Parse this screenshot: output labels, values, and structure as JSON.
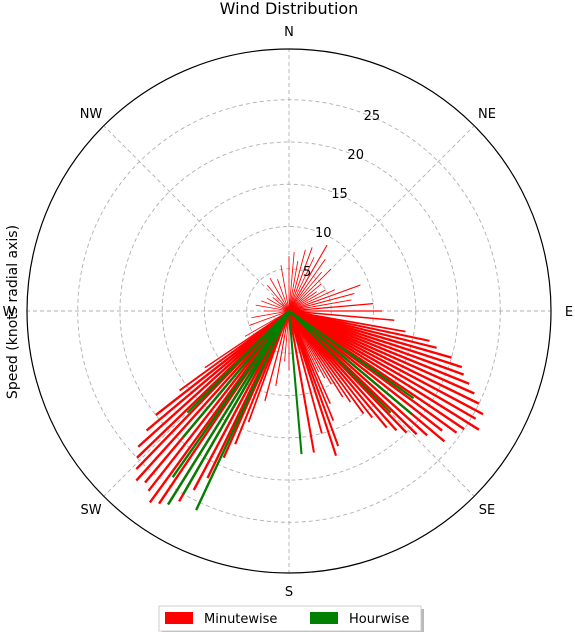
{
  "chart_data": {
    "type": "polar-bar",
    "title": "Wind Distribution",
    "ylabel": "Speed (knots radial axis)",
    "theta_direction": "clockwise",
    "theta_zero": "N",
    "direction_labels": [
      "N",
      "NE",
      "E",
      "SE",
      "S",
      "SW",
      "W",
      "NW"
    ],
    "rticks": [
      5,
      10,
      15,
      20,
      25
    ],
    "rlim": [
      0,
      31
    ],
    "grid": true,
    "legend_placement": "bottom-center",
    "series": [
      {
        "name": "Minutewise",
        "color": "#ff0000",
        "direction_deg": [
          0,
          5,
          10,
          15,
          20,
          25,
          30,
          35,
          40,
          45,
          50,
          55,
          60,
          65,
          70,
          75,
          80,
          85,
          90,
          95,
          100,
          102,
          104,
          106,
          108,
          110,
          112,
          114,
          116,
          118,
          120,
          122,
          124,
          126,
          128,
          130,
          132,
          134,
          136,
          138,
          140,
          142,
          144,
          146,
          148,
          150,
          152,
          154,
          156,
          158,
          160,
          162,
          165,
          170,
          175,
          180,
          185,
          190,
          195,
          200,
          202,
          204,
          206,
          208,
          210,
          212,
          214,
          216,
          218,
          220,
          222,
          224,
          226,
          228,
          230,
          232,
          234,
          236,
          240,
          250,
          260,
          270,
          280,
          290,
          300,
          310,
          320,
          330,
          340,
          350
        ],
        "speed": [
          6.5,
          7,
          6,
          7.5,
          8,
          7,
          9,
          7.5,
          6,
          7,
          5,
          4,
          5,
          6,
          9,
          8,
          7.5,
          10,
          11,
          12.5,
          14,
          17,
          18,
          20,
          21.5,
          22,
          23,
          24,
          25,
          26,
          25.5,
          26.5,
          25,
          24.5,
          23,
          24,
          22,
          21,
          20,
          19,
          18,
          16,
          15,
          13,
          12,
          10,
          9,
          8,
          12,
          14,
          17,
          18,
          15,
          17,
          9,
          7,
          6,
          9,
          11,
          14,
          17,
          19,
          22,
          24,
          26,
          27,
          27.5,
          28,
          27,
          26.5,
          27,
          26,
          25,
          24,
          22,
          20,
          16,
          12,
          6,
          5,
          4.5,
          3,
          4,
          3.5,
          3,
          2.5,
          4,
          4.5,
          4,
          5.5
        ]
      },
      {
        "name": "Hourwise",
        "color": "#008000",
        "direction_deg": [
          125,
          130,
          135,
          175,
          205,
          210,
          212,
          215,
          220,
          225
        ],
        "speed": [
          18,
          19,
          17,
          17,
          26,
          25,
          27,
          24,
          19.5,
          17
        ]
      }
    ]
  }
}
